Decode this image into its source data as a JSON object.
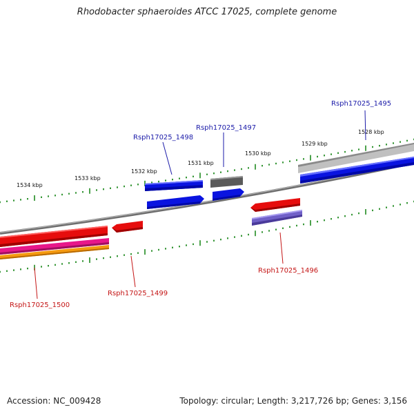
{
  "title": "Rhodobacter sphaeroides ATCC 17025, complete genome",
  "footer": {
    "accession": "Accession: NC_009428",
    "summary": "Topology: circular; Length: 3,217,726 bp; Genes: 3,156"
  },
  "kbp_labels": [
    "1534 kbp",
    "1533 kbp",
    "1532 kbp",
    "1531 kbp",
    "1530 kbp",
    "1529 kbp",
    "1528 kbp"
  ],
  "gene_labels": {
    "g1495": "Rsph17025_1495",
    "g1496": "Rsph17025_1496",
    "g1497": "Rsph17025_1497",
    "g1498": "Rsph17025_1498",
    "g1499": "Rsph17025_1499",
    "g1500": "Rsph17025_1500"
  },
  "colors": {
    "forward_label": "#1a1aa8",
    "reverse_label": "#c41414",
    "tick": "#1f8a1f",
    "backbone": "#808080",
    "cds_blue": "#0a14e0",
    "cds_red": "#e60d0d",
    "cds_gray": "#5a5a5a",
    "cds_lightgray": "#c0c0c0",
    "cds_magenta": "#e8178a",
    "cds_orange": "#f59a10",
    "cds_purple": "#7060c8"
  }
}
